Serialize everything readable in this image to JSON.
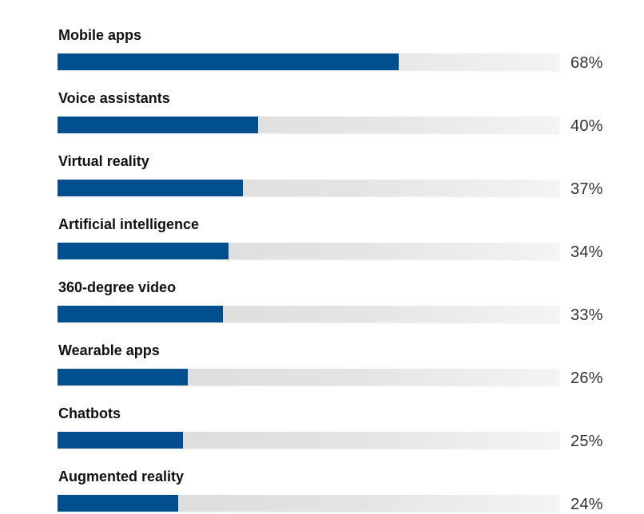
{
  "chart_data": {
    "type": "bar",
    "orientation": "horizontal",
    "title": "",
    "xlabel": "",
    "ylabel": "",
    "xlim": [
      0,
      100
    ],
    "categories": [
      "Mobile apps",
      "Voice assistants",
      "Virtual reality",
      "Artificial intelligence",
      "360-degree video",
      "Wearable apps",
      "Chatbots",
      "Augmented reality"
    ],
    "values": [
      68,
      40,
      37,
      34,
      33,
      26,
      25,
      24
    ],
    "value_labels": [
      "68%",
      "40%",
      "37%",
      "34%",
      "33%",
      "26%",
      "25%",
      "24%"
    ],
    "bar_color": "#024f8f",
    "track_color": "#e2e2e2"
  }
}
